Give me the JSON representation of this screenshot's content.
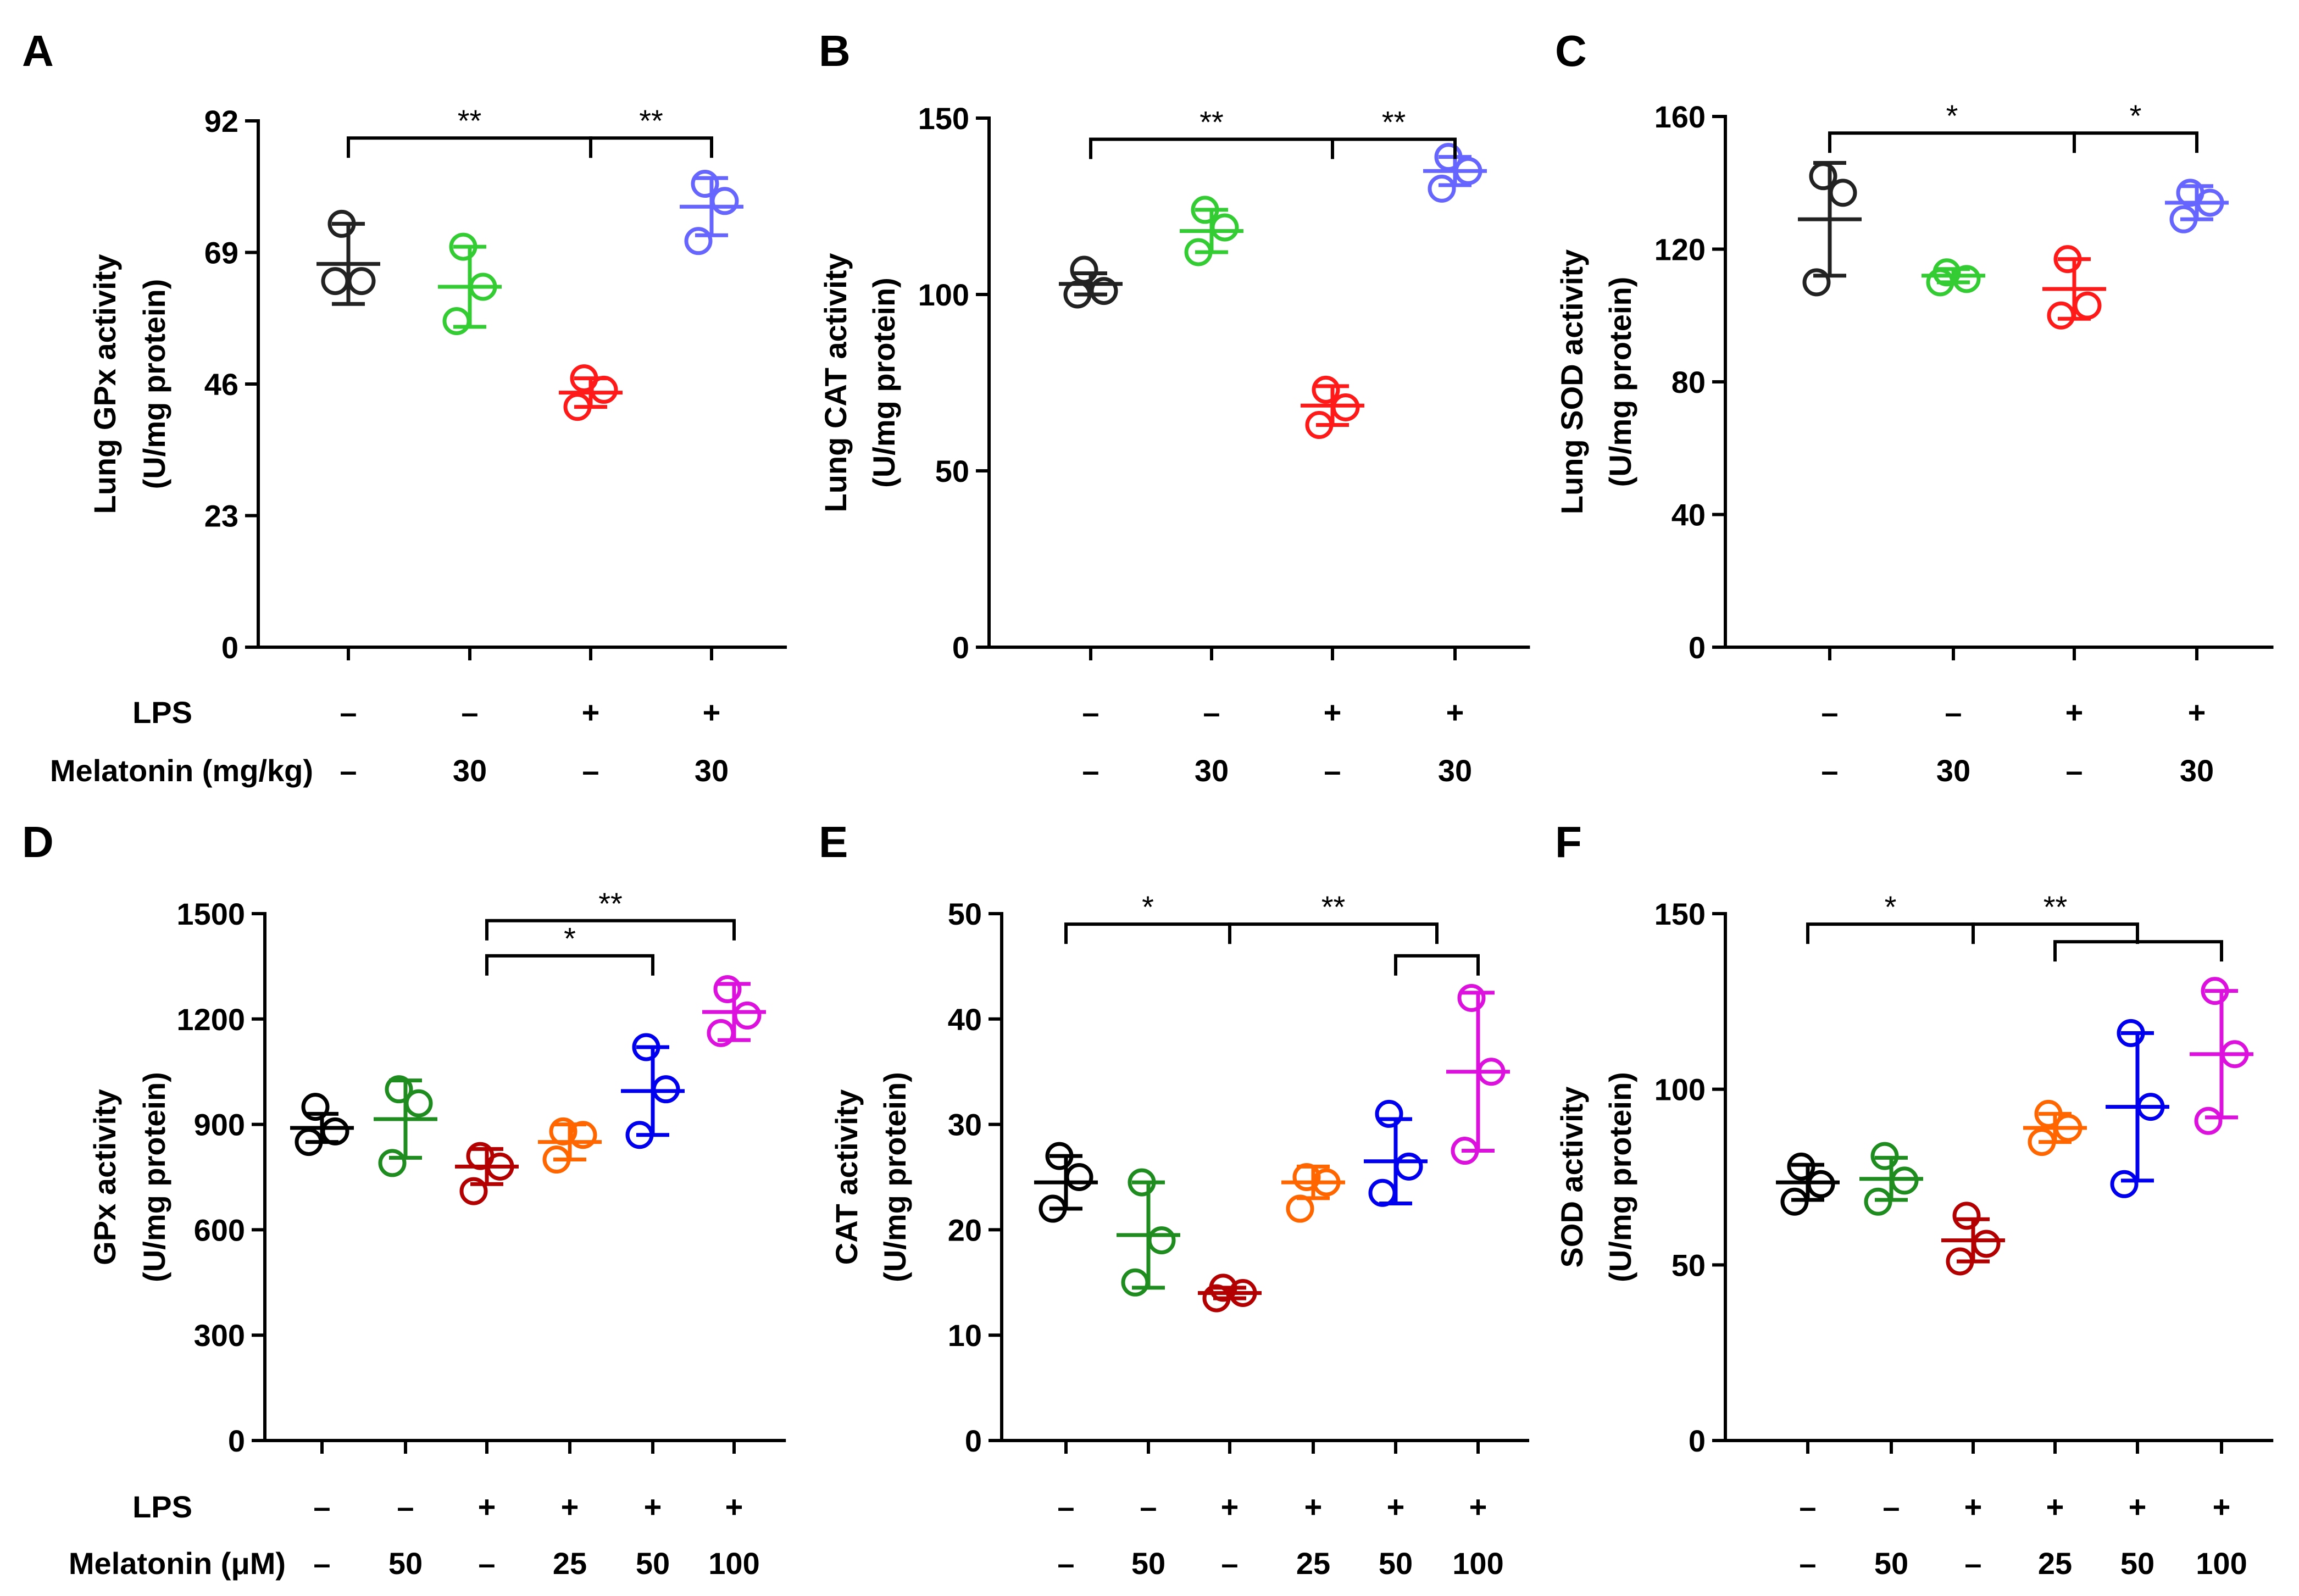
{
  "figure": {
    "row_labels": {
      "top_lps": "LPS",
      "top_mel": "Melatonin (mg/kg)",
      "bottom_lps": "LPS",
      "bottom_mel": "Melatonin (μM)"
    }
  },
  "chart_data": [
    {
      "id": "A",
      "type": "scatter",
      "panel_label": "A",
      "ylabel": [
        "Lung GPx activity",
        "(U/mg protein)"
      ],
      "ylim": [
        0,
        92
      ],
      "yticks": [
        0,
        23,
        46,
        69,
        92
      ],
      "lps": [
        "–",
        "–",
        "+",
        "+"
      ],
      "melatonin": [
        "–",
        "30",
        "–",
        "30"
      ],
      "groups": [
        {
          "color": "#222222",
          "points": [
            74,
            64,
            64
          ],
          "mean": 67,
          "sd": 7
        },
        {
          "color": "#33cc33",
          "points": [
            70,
            63,
            57
          ],
          "mean": 63,
          "sd": 7
        },
        {
          "color": "#ff1a1a",
          "points": [
            47,
            45,
            42
          ],
          "mean": 44.5,
          "sd": 2.5
        },
        {
          "color": "#6666ff",
          "points": [
            81,
            78,
            71
          ],
          "mean": 77,
          "sd": 5
        }
      ],
      "brackets": [
        {
          "from": 0,
          "to": 2,
          "y": 89,
          "label": "**"
        },
        {
          "from": 2,
          "to": 3,
          "y": 89,
          "label": "**"
        }
      ]
    },
    {
      "id": "B",
      "type": "scatter",
      "panel_label": "B",
      "ylabel": [
        "Lung CAT activity",
        "(U/mg protein)"
      ],
      "ylim": [
        0,
        150
      ],
      "yticks": [
        0,
        50,
        100,
        150
      ],
      "lps": [
        "–",
        "–",
        "+",
        "+"
      ],
      "melatonin": [
        "–",
        "30",
        "–",
        "30"
      ],
      "groups": [
        {
          "color": "#222222",
          "points": [
            107,
            101,
            100
          ],
          "mean": 103,
          "sd": 3
        },
        {
          "color": "#33cc33",
          "points": [
            124,
            119,
            112
          ],
          "mean": 118,
          "sd": 6
        },
        {
          "color": "#ff1a1a",
          "points": [
            73,
            68,
            63
          ],
          "mean": 68.5,
          "sd": 5.5
        },
        {
          "color": "#6666ff",
          "points": [
            139,
            135,
            130
          ],
          "mean": 135,
          "sd": 4
        }
      ],
      "brackets": [
        {
          "from": 0,
          "to": 2,
          "y": 144,
          "label": "**"
        },
        {
          "from": 2,
          "to": 3,
          "y": 144,
          "label": "**"
        }
      ]
    },
    {
      "id": "C",
      "type": "scatter",
      "panel_label": "C",
      "ylabel": [
        "Lung SOD activity",
        "(U/mg protein)"
      ],
      "ylim": [
        0,
        160
      ],
      "yticks": [
        0,
        40,
        80,
        120,
        160
      ],
      "lps": [
        "–",
        "–",
        "+",
        "+"
      ],
      "melatonin": [
        "–",
        "30",
        "–",
        "30"
      ],
      "groups": [
        {
          "color": "#222222",
          "points": [
            142,
            137,
            110
          ],
          "mean": 129,
          "sd": 17
        },
        {
          "color": "#33cc33",
          "points": [
            113,
            111,
            110
          ],
          "mean": 112,
          "sd": 2
        },
        {
          "color": "#ff1a1a",
          "points": [
            117,
            103,
            100
          ],
          "mean": 108,
          "sd": 9
        },
        {
          "color": "#6666ff",
          "points": [
            137,
            134,
            129
          ],
          "mean": 134,
          "sd": 5
        }
      ],
      "brackets": [
        {
          "from": 0,
          "to": 2,
          "y": 155,
          "label": "*"
        },
        {
          "from": 2,
          "to": 3,
          "y": 155,
          "label": "*"
        }
      ]
    },
    {
      "id": "D",
      "type": "scatter",
      "panel_label": "D",
      "ylabel": [
        "GPx activity",
        "(U/mg protein)"
      ],
      "ylim": [
        0,
        1500
      ],
      "yticks": [
        0,
        300,
        600,
        900,
        1200,
        1500
      ],
      "lps": [
        "–",
        "–",
        "+",
        "+",
        "+",
        "+"
      ],
      "melatonin": [
        "–",
        "50",
        "–",
        "25",
        "50",
        "100"
      ],
      "groups": [
        {
          "color": "#000000",
          "points": [
            950,
            880,
            850
          ],
          "mean": 890,
          "sd": 40
        },
        {
          "color": "#1e8c1e",
          "points": [
            1000,
            960,
            790
          ],
          "mean": 915,
          "sd": 110
        },
        {
          "color": "#b30000",
          "points": [
            810,
            780,
            710
          ],
          "mean": 780,
          "sd": 50
        },
        {
          "color": "#ff6600",
          "points": [
            880,
            870,
            800
          ],
          "mean": 850,
          "sd": 50
        },
        {
          "color": "#0000ee",
          "points": [
            1120,
            1000,
            870
          ],
          "mean": 995,
          "sd": 125
        },
        {
          "color": "#dd11dd",
          "points": [
            1285,
            1210,
            1160
          ],
          "mean": 1220,
          "sd": 80
        }
      ],
      "brackets": [
        {
          "from": 2,
          "to": 5,
          "y": 1480,
          "label": "**"
        },
        {
          "from": 2,
          "to": 4,
          "y": 1380,
          "label": "*"
        }
      ]
    },
    {
      "id": "E",
      "type": "scatter",
      "panel_label": "E",
      "ylabel": [
        "CAT activity",
        "(U/mg protein)"
      ],
      "ylim": [
        0,
        50
      ],
      "yticks": [
        0,
        10,
        20,
        30,
        40,
        50
      ],
      "lps": [
        "–",
        "–",
        "+",
        "+",
        "+",
        "+"
      ],
      "melatonin": [
        "–",
        "50",
        "–",
        "25",
        "50",
        "100"
      ],
      "groups": [
        {
          "color": "#000000",
          "points": [
            27,
            25,
            22
          ],
          "mean": 24.5,
          "sd": 2.5
        },
        {
          "color": "#1e8c1e",
          "points": [
            24.5,
            19,
            15
          ],
          "mean": 19.5,
          "sd": 5
        },
        {
          "color": "#b30000",
          "points": [
            14.5,
            14,
            13.5
          ],
          "mean": 14,
          "sd": 0.5
        },
        {
          "color": "#ff6600",
          "points": [
            25,
            24.5,
            22
          ],
          "mean": 24.5,
          "sd": 1.5
        },
        {
          "color": "#0000ee",
          "points": [
            31,
            26,
            23.5
          ],
          "mean": 26.5,
          "sd": 4
        },
        {
          "color": "#dd11dd",
          "points": [
            42,
            35,
            27.5
          ],
          "mean": 35,
          "sd": 7.5
        }
      ],
      "brackets": [
        {
          "from": 0,
          "to": 2,
          "y": 49,
          "label": "*"
        },
        {
          "from": 2,
          "to": 4.5,
          "y": 49,
          "label": "**"
        },
        {
          "from": 4,
          "to": 5,
          "y": 46,
          "label": ""
        }
      ]
    },
    {
      "id": "F",
      "type": "scatter",
      "panel_label": "F",
      "ylabel": [
        "SOD activity",
        "(U/mg protein)"
      ],
      "ylim": [
        0,
        150
      ],
      "yticks": [
        0,
        50,
        100,
        150
      ],
      "lps": [
        "–",
        "–",
        "+",
        "+",
        "+",
        "+"
      ],
      "melatonin": [
        "–",
        "50",
        "–",
        "25",
        "50",
        "100"
      ],
      "groups": [
        {
          "color": "#000000",
          "points": [
            78,
            73,
            68
          ],
          "mean": 73.5,
          "sd": 5
        },
        {
          "color": "#1e8c1e",
          "points": [
            81,
            74,
            68
          ],
          "mean": 74.5,
          "sd": 6
        },
        {
          "color": "#b30000",
          "points": [
            64,
            56,
            51
          ],
          "mean": 57,
          "sd": 6
        },
        {
          "color": "#ff6600",
          "points": [
            93,
            89,
            85
          ],
          "mean": 89,
          "sd": 4
        },
        {
          "color": "#0000ee",
          "points": [
            116,
            95,
            73
          ],
          "mean": 95,
          "sd": 21
        },
        {
          "color": "#dd11dd",
          "points": [
            128,
            110,
            91
          ],
          "mean": 110,
          "sd": 18
        }
      ],
      "brackets": [
        {
          "from": 0,
          "to": 2,
          "y": 147,
          "label": "*"
        },
        {
          "from": 2,
          "to": 4,
          "y": 147,
          "label": "**"
        },
        {
          "from": 3,
          "to": 5,
          "y": 142,
          "label": ""
        }
      ]
    }
  ]
}
